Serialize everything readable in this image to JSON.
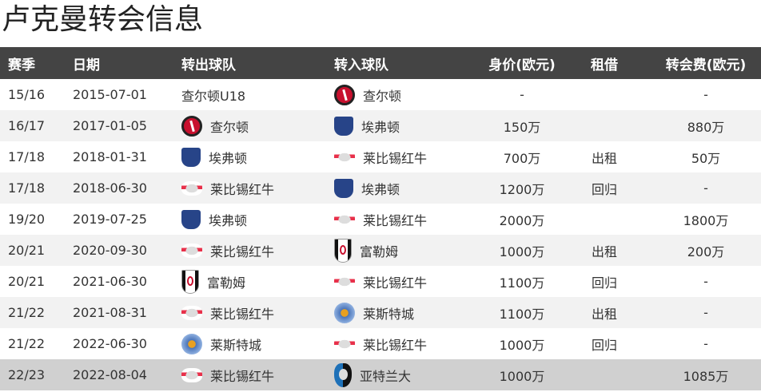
{
  "title": "卢克曼转会信息",
  "headers": [
    "赛季",
    "日期",
    "转出球队",
    "转入球队",
    "身价(欧元)",
    "租借",
    "转会费(欧元)"
  ],
  "rows": [
    {
      "season": "15/16",
      "date": "2015-07-01",
      "out": "查尔顿U18",
      "out_badge": "",
      "in": "查尔顿",
      "in_badge": "charlton",
      "value": "-",
      "loan": "",
      "fee": "-"
    },
    {
      "season": "16/17",
      "date": "2017-01-05",
      "out": "查尔顿",
      "out_badge": "charlton",
      "in": "埃弗顿",
      "in_badge": "everton",
      "value": "150万",
      "loan": "",
      "fee": "880万"
    },
    {
      "season": "17/18",
      "date": "2018-01-31",
      "out": "埃弗顿",
      "out_badge": "everton",
      "in": "莱比锡红牛",
      "in_badge": "rbl",
      "value": "700万",
      "loan": "出租",
      "fee": "50万"
    },
    {
      "season": "17/18",
      "date": "2018-06-30",
      "out": "莱比锡红牛",
      "out_badge": "rbl",
      "in": "埃弗顿",
      "in_badge": "everton",
      "value": "1200万",
      "loan": "回归",
      "fee": "-"
    },
    {
      "season": "19/20",
      "date": "2019-07-25",
      "out": "埃弗顿",
      "out_badge": "everton",
      "in": "莱比锡红牛",
      "in_badge": "rbl",
      "value": "2000万",
      "loan": "",
      "fee": "1800万"
    },
    {
      "season": "20/21",
      "date": "2020-09-30",
      "out": "莱比锡红牛",
      "out_badge": "rbl",
      "in": "富勒姆",
      "in_badge": "fulham",
      "value": "1000万",
      "loan": "出租",
      "fee": "200万"
    },
    {
      "season": "20/21",
      "date": "2021-06-30",
      "out": "富勒姆",
      "out_badge": "fulham",
      "in": "莱比锡红牛",
      "in_badge": "rbl",
      "value": "1100万",
      "loan": "回归",
      "fee": "-"
    },
    {
      "season": "21/22",
      "date": "2021-08-31",
      "out": "莱比锡红牛",
      "out_badge": "rbl",
      "in": "莱斯特城",
      "in_badge": "leicester",
      "value": "1100万",
      "loan": "出租",
      "fee": "-"
    },
    {
      "season": "21/22",
      "date": "2022-06-30",
      "out": "莱斯特城",
      "out_badge": "leicester",
      "in": "莱比锡红牛",
      "in_badge": "rbl",
      "value": "1000万",
      "loan": "回归",
      "fee": "-"
    },
    {
      "season": "22/23",
      "date": "2022-08-04",
      "out": "莱比锡红牛",
      "out_badge": "rbl",
      "in": "亚特兰大",
      "in_badge": "atalanta",
      "value": "1000万",
      "loan": "",
      "fee": "1085万",
      "highlighted": true
    }
  ],
  "colors": {
    "header_bg": "#444444",
    "row_alt": "#f2f2f2",
    "row_highlight": "#d0d0d0"
  }
}
